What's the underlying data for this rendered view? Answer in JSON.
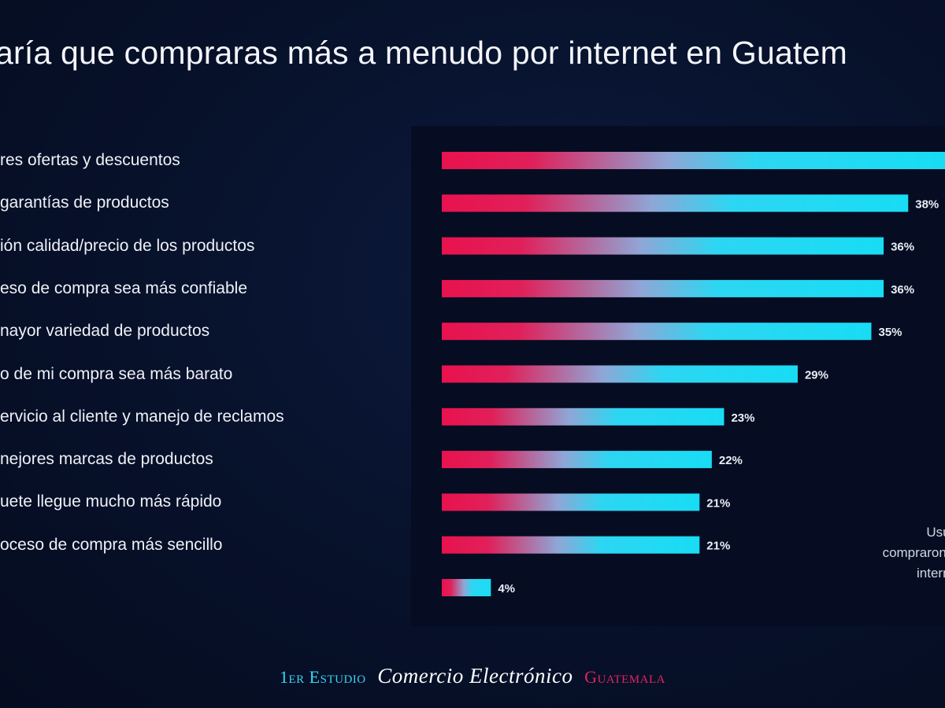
{
  "title": "aría que compraras más a menudo por internet en Guatem",
  "side_note": [
    "Usua",
    "compraron e",
    "interne"
  ],
  "footer": {
    "part1": "1er Estudio",
    "part2": "Comercio Electrónico",
    "part3": "Guatemala"
  },
  "colors": {
    "bar_start": "#e8124e",
    "bar_end": "#18dcf4",
    "background": "#07112a",
    "panel": "#060d22"
  },
  "chart_data": {
    "type": "bar",
    "orientation": "horizontal",
    "categories": [
      "res ofertas y descuentos",
      "garantías de productos",
      "ión calidad/precio de los productos",
      "eso de compra sea más confiable",
      "nayor variedad de productos",
      "o de mi compra sea más barato",
      "ervicio al cliente y manejo de reclamos",
      "nejores marcas de productos",
      "uete llegue mucho más rápido",
      "oceso de compra más sencillo",
      ""
    ],
    "values": [
      41,
      38,
      36,
      36,
      35,
      29,
      23,
      22,
      21,
      21,
      4
    ],
    "value_labels": [
      "",
      "38%",
      "36%",
      "36%",
      "35%",
      "29%",
      "23%",
      "22%",
      "21%",
      "21%",
      "4%"
    ],
    "xlim": [
      0,
      41
    ],
    "grid": false,
    "legend": "none"
  }
}
